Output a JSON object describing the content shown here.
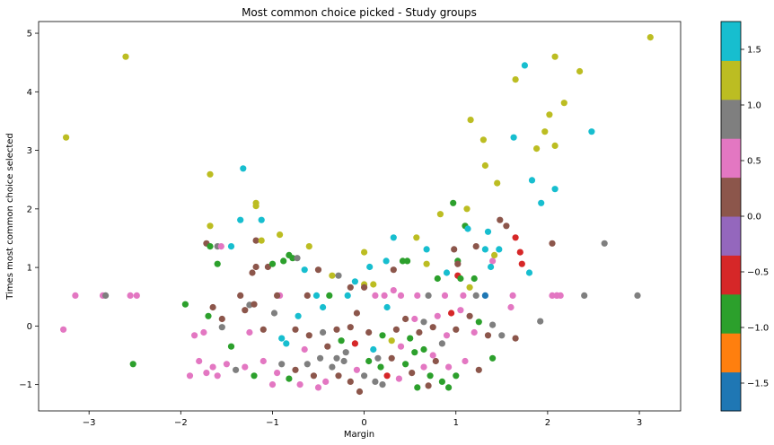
{
  "chart_data": {
    "type": "scatter",
    "title": "Most common choice picked - Study groups",
    "xlabel": "Margin",
    "ylabel": "Times most common choice selected",
    "xlim": [
      -3.55,
      3.45
    ],
    "ylim": [
      -1.45,
      5.2
    ],
    "xticks": [
      "−3",
      "−2",
      "−1",
      "0",
      "1",
      "2",
      "3"
    ],
    "xtick_values": [
      -3,
      -2,
      -1,
      0,
      1,
      2,
      3
    ],
    "yticks": [
      "−1",
      "0",
      "1",
      "2",
      "3",
      "4",
      "5"
    ],
    "ytick_values": [
      -1,
      0,
      1,
      2,
      3,
      4,
      5
    ],
    "grid": false,
    "colormap": "tab10",
    "colorbar": {
      "range": [
        -1.75,
        1.75
      ],
      "ticks": [
        "−1.5",
        "−1.0",
        "−0.5",
        "0.0",
        "0.5",
        "1.0",
        "1.5"
      ],
      "tick_values": [
        -1.5,
        -1.0,
        -0.5,
        0.0,
        0.5,
        1.0,
        1.5
      ],
      "colors": [
        "#1f77b4",
        "#ff7f0e",
        "#2ca02c",
        "#d62728",
        "#9467bd",
        "#8c564b",
        "#e377c2",
        "#7f7f7f",
        "#bcbd22",
        "#17becf"
      ]
    },
    "points": [
      {
        "x": 3.12,
        "y": 4.93,
        "c": 1.2
      },
      {
        "x": -2.6,
        "y": 4.6,
        "c": 1.2
      },
      {
        "x": 2.08,
        "y": 4.6,
        "c": 1.2
      },
      {
        "x": 1.75,
        "y": 4.45,
        "c": 1.6
      },
      {
        "x": 2.35,
        "y": 4.35,
        "c": 1.2
      },
      {
        "x": 1.65,
        "y": 4.21,
        "c": 1.2
      },
      {
        "x": 2.18,
        "y": 3.81,
        "c": 1.2
      },
      {
        "x": 2.02,
        "y": 3.61,
        "c": 1.2
      },
      {
        "x": 1.16,
        "y": 3.52,
        "c": 1.2
      },
      {
        "x": 1.97,
        "y": 3.32,
        "c": 1.2
      },
      {
        "x": 2.48,
        "y": 3.32,
        "c": 1.6
      },
      {
        "x": -3.25,
        "y": 3.22,
        "c": 1.2
      },
      {
        "x": 1.63,
        "y": 3.22,
        "c": 1.6
      },
      {
        "x": 1.3,
        "y": 3.18,
        "c": 1.2
      },
      {
        "x": 2.08,
        "y": 3.08,
        "c": 1.2
      },
      {
        "x": 1.88,
        "y": 3.03,
        "c": 1.2
      },
      {
        "x": 1.32,
        "y": 2.74,
        "c": 1.2
      },
      {
        "x": -1.32,
        "y": 2.69,
        "c": 1.6
      },
      {
        "x": -1.68,
        "y": 2.59,
        "c": 1.2
      },
      {
        "x": 1.83,
        "y": 2.49,
        "c": 1.6
      },
      {
        "x": 1.45,
        "y": 2.44,
        "c": 1.2
      },
      {
        "x": 2.08,
        "y": 2.34,
        "c": 1.6
      },
      {
        "x": 1.93,
        "y": 2.1,
        "c": 1.6
      },
      {
        "x": -1.18,
        "y": 2.1,
        "c": 1.2
      },
      {
        "x": -1.18,
        "y": 2.05,
        "c": 1.2
      },
      {
        "x": 0.97,
        "y": 2.1,
        "c": -1.0
      },
      {
        "x": 1.12,
        "y": 2.0,
        "c": 1.2
      },
      {
        "x": 0.83,
        "y": 1.91,
        "c": 1.2
      },
      {
        "x": -1.35,
        "y": 1.81,
        "c": 1.6
      },
      {
        "x": -1.12,
        "y": 1.81,
        "c": 1.6
      },
      {
        "x": 1.48,
        "y": 1.81,
        "c": 0.0
      },
      {
        "x": 1.55,
        "y": 1.71,
        "c": 0.0
      },
      {
        "x": -1.68,
        "y": 1.71,
        "c": 1.2
      },
      {
        "x": 1.1,
        "y": 1.71,
        "c": -1.0
      },
      {
        "x": 1.13,
        "y": 1.66,
        "c": 1.6
      },
      {
        "x": -0.92,
        "y": 1.56,
        "c": 1.2
      },
      {
        "x": 1.35,
        "y": 1.61,
        "c": 1.6
      },
      {
        "x": 0.32,
        "y": 1.51,
        "c": 1.6
      },
      {
        "x": 0.57,
        "y": 1.51,
        "c": 1.2
      },
      {
        "x": 1.65,
        "y": 1.51,
        "c": -0.5
      },
      {
        "x": -1.72,
        "y": 1.41,
        "c": 0.0
      },
      {
        "x": -1.18,
        "y": 1.46,
        "c": 0.0
      },
      {
        "x": -1.12,
        "y": 1.46,
        "c": 1.2
      },
      {
        "x": 2.05,
        "y": 1.41,
        "c": 0.0
      },
      {
        "x": 2.62,
        "y": 1.41,
        "c": 0.8
      },
      {
        "x": -1.68,
        "y": 1.36,
        "c": -1.0
      },
      {
        "x": -1.6,
        "y": 1.36,
        "c": 1.0
      },
      {
        "x": -1.56,
        "y": 1.36,
        "c": 0.6
      },
      {
        "x": -1.45,
        "y": 1.36,
        "c": 1.6
      },
      {
        "x": -0.6,
        "y": 1.36,
        "c": 1.2
      },
      {
        "x": 0.68,
        "y": 1.31,
        "c": 1.6
      },
      {
        "x": 0.98,
        "y": 1.31,
        "c": 0.0
      },
      {
        "x": 1.22,
        "y": 1.36,
        "c": 0.0
      },
      {
        "x": 1.32,
        "y": 1.31,
        "c": 1.6
      },
      {
        "x": 1.47,
        "y": 1.31,
        "c": 1.6
      },
      {
        "x": 1.7,
        "y": 1.26,
        "c": -0.5
      },
      {
        "x": 0.0,
        "y": 1.26,
        "c": 1.2
      },
      {
        "x": -0.82,
        "y": 1.21,
        "c": -1.0
      },
      {
        "x": -0.78,
        "y": 1.16,
        "c": -1.0
      },
      {
        "x": -0.73,
        "y": 1.16,
        "c": 1.0
      },
      {
        "x": -0.88,
        "y": 1.11,
        "c": -1.0
      },
      {
        "x": 0.24,
        "y": 1.11,
        "c": 1.6
      },
      {
        "x": 0.42,
        "y": 1.11,
        "c": -1.0
      },
      {
        "x": 0.47,
        "y": 1.11,
        "c": -1.0
      },
      {
        "x": 1.02,
        "y": 1.11,
        "c": -1.0
      },
      {
        "x": 1.4,
        "y": 1.11,
        "c": 0.5
      },
      {
        "x": 1.42,
        "y": 1.21,
        "c": 1.2
      },
      {
        "x": 1.72,
        "y": 1.06,
        "c": -0.5
      },
      {
        "x": -1.6,
        "y": 1.06,
        "c": -1.0
      },
      {
        "x": -1.05,
        "y": 1.01,
        "c": 0.0
      },
      {
        "x": -1.18,
        "y": 1.01,
        "c": 0.0
      },
      {
        "x": -1.0,
        "y": 1.06,
        "c": -1.0
      },
      {
        "x": 0.06,
        "y": 1.01,
        "c": 1.6
      },
      {
        "x": 0.68,
        "y": 1.06,
        "c": 1.2
      },
      {
        "x": 1.02,
        "y": 1.06,
        "c": 0.0
      },
      {
        "x": -0.5,
        "y": 0.96,
        "c": 0.0
      },
      {
        "x": -0.65,
        "y": 0.96,
        "c": 1.6
      },
      {
        "x": 0.32,
        "y": 0.96,
        "c": 0.0
      },
      {
        "x": 1.38,
        "y": 1.01,
        "c": 1.6
      },
      {
        "x": 0.9,
        "y": 0.91,
        "c": 1.6
      },
      {
        "x": -1.22,
        "y": 0.91,
        "c": 0.0
      },
      {
        "x": -0.35,
        "y": 0.86,
        "c": 1.2
      },
      {
        "x": -0.28,
        "y": 0.86,
        "c": 0.8
      },
      {
        "x": 1.02,
        "y": 0.86,
        "c": -0.5
      },
      {
        "x": 1.8,
        "y": 0.91,
        "c": 1.6
      },
      {
        "x": 0.8,
        "y": 0.81,
        "c": -1.0
      },
      {
        "x": 1.05,
        "y": 0.81,
        "c": -1.0
      },
      {
        "x": 1.2,
        "y": 0.81,
        "c": -1.0
      },
      {
        "x": -0.1,
        "y": 0.76,
        "c": 1.6
      },
      {
        "x": 0.0,
        "y": 0.71,
        "c": 1.2
      },
      {
        "x": 0.1,
        "y": 0.71,
        "c": 1.2
      },
      {
        "x": 0.0,
        "y": 0.66,
        "c": 0.0
      },
      {
        "x": -0.15,
        "y": 0.66,
        "c": 0.0
      },
      {
        "x": 1.15,
        "y": 0.66,
        "c": 1.2
      },
      {
        "x": -1.25,
        "y": 0.36,
        "c": 0.8
      },
      {
        "x": 0.32,
        "y": 0.61,
        "c": 0.5
      },
      {
        "x": -3.15,
        "y": 0.52,
        "c": 0.6
      },
      {
        "x": -2.85,
        "y": 0.52,
        "c": 0.6
      },
      {
        "x": -2.82,
        "y": 0.52,
        "c": 0.8
      },
      {
        "x": -2.55,
        "y": 0.52,
        "c": 0.6
      },
      {
        "x": -2.48,
        "y": 0.52,
        "c": 0.6
      },
      {
        "x": -1.35,
        "y": 0.52,
        "c": 0.0
      },
      {
        "x": -0.62,
        "y": 0.52,
        "c": 0.0
      },
      {
        "x": -0.92,
        "y": 0.52,
        "c": 0.6
      },
      {
        "x": -0.95,
        "y": 0.52,
        "c": 0.0
      },
      {
        "x": -0.52,
        "y": 0.52,
        "c": 1.6
      },
      {
        "x": -0.38,
        "y": 0.52,
        "c": -1.0
      },
      {
        "x": -0.18,
        "y": 0.52,
        "c": 1.6
      },
      {
        "x": 0.12,
        "y": 0.52,
        "c": 0.6
      },
      {
        "x": 0.22,
        "y": 0.52,
        "c": 0.6
      },
      {
        "x": 0.4,
        "y": 0.52,
        "c": 0.6
      },
      {
        "x": 0.58,
        "y": 0.52,
        "c": 0.6
      },
      {
        "x": 0.7,
        "y": 0.52,
        "c": 0.8
      },
      {
        "x": 0.88,
        "y": 0.52,
        "c": 0.6
      },
      {
        "x": 1.08,
        "y": 0.52,
        "c": 0.6
      },
      {
        "x": 1.22,
        "y": 0.52,
        "c": 0.8
      },
      {
        "x": 1.32,
        "y": 0.52,
        "c": -1.75
      },
      {
        "x": 1.62,
        "y": 0.52,
        "c": 0.6
      },
      {
        "x": 2.05,
        "y": 0.52,
        "c": 0.6
      },
      {
        "x": 2.1,
        "y": 0.52,
        "c": 0.6
      },
      {
        "x": 2.14,
        "y": 0.52,
        "c": 0.6
      },
      {
        "x": 2.4,
        "y": 0.52,
        "c": 0.8
      },
      {
        "x": 2.98,
        "y": 0.52,
        "c": 0.8
      },
      {
        "x": -1.65,
        "y": 0.32,
        "c": 0.0
      },
      {
        "x": -1.95,
        "y": 0.37,
        "c": -1.0
      },
      {
        "x": -1.7,
        "y": 0.17,
        "c": -1.0
      },
      {
        "x": -1.55,
        "y": 0.12,
        "c": 0.0
      },
      {
        "x": -1.3,
        "y": 0.27,
        "c": 0.0
      },
      {
        "x": -1.2,
        "y": 0.37,
        "c": 0.0
      },
      {
        "x": -0.98,
        "y": 0.22,
        "c": 0.8
      },
      {
        "x": -0.72,
        "y": 0.17,
        "c": 1.6
      },
      {
        "x": -0.45,
        "y": 0.32,
        "c": 1.6
      },
      {
        "x": -0.08,
        "y": 0.22,
        "c": 0.0
      },
      {
        "x": 0.25,
        "y": 0.32,
        "c": 1.6
      },
      {
        "x": 0.45,
        "y": 0.12,
        "c": 0.0
      },
      {
        "x": 0.55,
        "y": 0.12,
        "c": 0.6
      },
      {
        "x": 0.65,
        "y": 0.07,
        "c": 0.8
      },
      {
        "x": 0.8,
        "y": 0.17,
        "c": 0.6
      },
      {
        "x": 0.95,
        "y": 0.22,
        "c": -0.5
      },
      {
        "x": 1.05,
        "y": 0.27,
        "c": 0.6
      },
      {
        "x": 1.15,
        "y": 0.17,
        "c": 0.0
      },
      {
        "x": 1.25,
        "y": 0.07,
        "c": -1.0
      },
      {
        "x": 1.4,
        "y": 0.02,
        "c": 0.8
      },
      {
        "x": 1.6,
        "y": 0.32,
        "c": 0.6
      },
      {
        "x": 1.92,
        "y": 0.08,
        "c": 0.8
      },
      {
        "x": 2.1,
        "y": 0.52,
        "c": 0.6
      },
      {
        "x": -3.28,
        "y": -0.06,
        "c": 0.6
      },
      {
        "x": -1.85,
        "y": -0.16,
        "c": 0.6
      },
      {
        "x": -1.75,
        "y": -0.11,
        "c": 0.6
      },
      {
        "x": -1.55,
        "y": -0.02,
        "c": 0.8
      },
      {
        "x": -1.25,
        "y": -0.11,
        "c": 0.6
      },
      {
        "x": -1.1,
        "y": -0.06,
        "c": 0.0
      },
      {
        "x": -0.9,
        "y": -0.21,
        "c": 1.6
      },
      {
        "x": -0.75,
        "y": -0.06,
        "c": 0.0
      },
      {
        "x": -0.6,
        "y": -0.16,
        "c": 0.0
      },
      {
        "x": -0.45,
        "y": -0.11,
        "c": 0.8
      },
      {
        "x": -0.3,
        "y": -0.06,
        "c": 0.0
      },
      {
        "x": -0.15,
        "y": -0.02,
        "c": 0.0
      },
      {
        "x": 0.05,
        "y": -0.11,
        "c": 0.0
      },
      {
        "x": 0.2,
        "y": -0.16,
        "c": -1.0
      },
      {
        "x": 0.35,
        "y": -0.06,
        "c": 0.0
      },
      {
        "x": 0.5,
        "y": -0.21,
        "c": -1.0
      },
      {
        "x": 0.6,
        "y": -0.11,
        "c": 0.0
      },
      {
        "x": 0.75,
        "y": -0.02,
        "c": 0.0
      },
      {
        "x": 0.9,
        "y": -0.16,
        "c": 0.6
      },
      {
        "x": 1.0,
        "y": -0.06,
        "c": 0.0
      },
      {
        "x": 1.2,
        "y": -0.11,
        "c": 0.6
      },
      {
        "x": 1.35,
        "y": -0.16,
        "c": 0.0
      },
      {
        "x": 1.5,
        "y": -0.16,
        "c": 0.8
      },
      {
        "x": 1.65,
        "y": -0.21,
        "c": 0.0
      },
      {
        "x": -2.52,
        "y": -0.65,
        "c": -0.75
      },
      {
        "x": -1.9,
        "y": -0.85,
        "c": 0.6
      },
      {
        "x": -1.8,
        "y": -0.6,
        "c": 0.6
      },
      {
        "x": -1.72,
        "y": -0.8,
        "c": 0.6
      },
      {
        "x": -1.65,
        "y": -0.7,
        "c": 0.6
      },
      {
        "x": -1.6,
        "y": -0.85,
        "c": 0.6
      },
      {
        "x": -1.5,
        "y": -0.65,
        "c": 0.6
      },
      {
        "x": -1.4,
        "y": -0.75,
        "c": 1.0
      },
      {
        "x": -1.3,
        "y": -0.7,
        "c": 0.6
      },
      {
        "x": -1.2,
        "y": -0.85,
        "c": -0.75
      },
      {
        "x": -1.1,
        "y": -0.6,
        "c": 0.6
      },
      {
        "x": -1.0,
        "y": -1.0,
        "c": 0.6
      },
      {
        "x": -0.95,
        "y": -0.8,
        "c": 0.6
      },
      {
        "x": -0.9,
        "y": -0.65,
        "c": 0.8
      },
      {
        "x": -0.82,
        "y": -0.9,
        "c": -1.0
      },
      {
        "x": -0.75,
        "y": -0.75,
        "c": 0.0
      },
      {
        "x": -0.7,
        "y": -1.0,
        "c": 0.6
      },
      {
        "x": -0.62,
        "y": -0.65,
        "c": 0.8
      },
      {
        "x": -0.55,
        "y": -0.85,
        "c": 0.0
      },
      {
        "x": -0.48,
        "y": -0.55,
        "c": 0.8
      },
      {
        "x": -0.42,
        "y": -0.95,
        "c": 0.6
      },
      {
        "x": -0.35,
        "y": -0.7,
        "c": 1.0
      },
      {
        "x": -0.28,
        "y": -0.85,
        "c": 0.0
      },
      {
        "x": -0.22,
        "y": -0.6,
        "c": 0.8
      },
      {
        "x": -0.15,
        "y": -0.95,
        "c": 0.0
      },
      {
        "x": -0.08,
        "y": -0.75,
        "c": 0.6
      },
      {
        "x": 0.0,
        "y": -0.85,
        "c": 1.0
      },
      {
        "x": 0.05,
        "y": -0.6,
        "c": -1.0
      },
      {
        "x": 0.12,
        "y": -0.95,
        "c": 0.8
      },
      {
        "x": 0.18,
        "y": -0.7,
        "c": -1.0
      },
      {
        "x": 0.25,
        "y": -0.85,
        "c": -0.5
      },
      {
        "x": 0.3,
        "y": -0.55,
        "c": 0.0
      },
      {
        "x": 0.38,
        "y": -0.9,
        "c": 0.6
      },
      {
        "x": 0.45,
        "y": -0.65,
        "c": -1.0
      },
      {
        "x": 0.52,
        "y": -0.8,
        "c": 0.0
      },
      {
        "x": 0.58,
        "y": -1.05,
        "c": -1.0
      },
      {
        "x": 0.65,
        "y": -0.7,
        "c": 0.6
      },
      {
        "x": 0.72,
        "y": -0.85,
        "c": -1.0
      },
      {
        "x": 0.78,
        "y": -0.6,
        "c": 0.0
      },
      {
        "x": 0.85,
        "y": -0.95,
        "c": -1.0
      },
      {
        "x": 0.92,
        "y": -0.7,
        "c": 0.6
      },
      {
        "x": 1.0,
        "y": -0.85,
        "c": -1.0
      },
      {
        "x": 1.1,
        "y": -0.6,
        "c": 0.6
      },
      {
        "x": 1.25,
        "y": -0.75,
        "c": 0.0
      },
      {
        "x": -0.05,
        "y": -1.12,
        "c": 0.0
      },
      {
        "x": 0.2,
        "y": -1.0,
        "c": 0.8
      },
      {
        "x": -0.5,
        "y": -1.05,
        "c": 0.6
      },
      {
        "x": 0.7,
        "y": -1.02,
        "c": 0.0
      },
      {
        "x": 0.92,
        "y": -1.05,
        "c": -1.0
      },
      {
        "x": -0.2,
        "y": -0.45,
        "c": 1.0
      },
      {
        "x": 0.1,
        "y": -0.4,
        "c": 1.6
      },
      {
        "x": -0.4,
        "y": -0.35,
        "c": 0.0
      },
      {
        "x": 0.4,
        "y": -0.35,
        "c": 0.6
      },
      {
        "x": 0.65,
        "y": -0.4,
        "c": -1.0
      },
      {
        "x": -0.65,
        "y": -0.4,
        "c": 0.6
      },
      {
        "x": 0.85,
        "y": -0.3,
        "c": 0.8
      },
      {
        "x": -0.85,
        "y": -0.3,
        "c": 1.6
      },
      {
        "x": 0.55,
        "y": -0.45,
        "c": -0.75
      },
      {
        "x": -0.25,
        "y": -0.25,
        "c": -1.0
      },
      {
        "x": 0.3,
        "y": -0.25,
        "c": 1.2
      },
      {
        "x": 1.4,
        "y": -0.55,
        "c": -1.0
      },
      {
        "x": -1.45,
        "y": -0.35,
        "c": -1.0
      },
      {
        "x": -0.1,
        "y": -0.3,
        "c": -0.5
      },
      {
        "x": 0.15,
        "y": -0.55,
        "c": 0.8
      },
      {
        "x": -0.3,
        "y": -0.55,
        "c": 1.0
      },
      {
        "x": 0.75,
        "y": -0.5,
        "c": 0.6
      }
    ]
  }
}
